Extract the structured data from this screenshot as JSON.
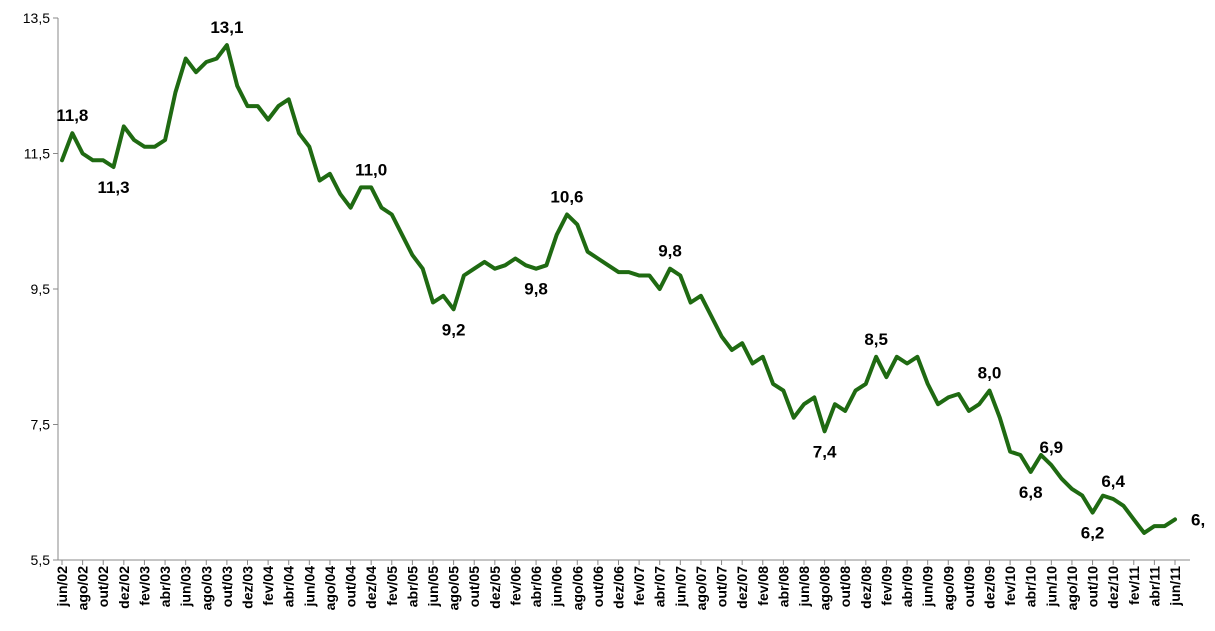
{
  "chart_data": {
    "type": "line",
    "categories": [
      "jun/02",
      null,
      "ago/02",
      null,
      "out/02",
      null,
      "dez/02",
      null,
      "fev/03",
      null,
      "abr/03",
      null,
      "jun/03",
      null,
      "ago/03",
      null,
      "out/03",
      null,
      "dez/03",
      null,
      "fev/04",
      null,
      "abr/04",
      null,
      "jun/04",
      null,
      "ago/04",
      null,
      "out/04",
      null,
      "dez/04",
      null,
      "fev/05",
      null,
      "abr/05",
      null,
      "jun/05",
      null,
      "ago/05",
      null,
      "out/05",
      null,
      "dez/05",
      null,
      "fev/06",
      null,
      "abr/06",
      null,
      "jun/06",
      null,
      "ago/06",
      null,
      "out/06",
      null,
      "dez/06",
      null,
      "fev/07",
      null,
      "abr/07",
      null,
      "jun/07",
      null,
      "ago/07",
      null,
      "out/07",
      null,
      "dez/07",
      null,
      "fev/08",
      null,
      "abr/08",
      null,
      "jun/08",
      null,
      "ago/08",
      null,
      "out/08",
      null,
      "dez/08",
      null,
      "fev/09",
      null,
      "abr/09",
      null,
      "jun/09",
      null,
      "ago/09",
      null,
      "out/09",
      null,
      "dez/09",
      null,
      "fev/10",
      null,
      "abr/10",
      null,
      "jun/10",
      null,
      "ago/10",
      null,
      "out/10",
      null,
      "dez/10",
      null,
      "fev/11",
      null,
      "abr/11",
      null,
      "jun/11"
    ],
    "values": [
      11.4,
      11.8,
      11.5,
      11.4,
      11.4,
      11.3,
      11.9,
      11.7,
      11.6,
      11.6,
      11.7,
      12.4,
      12.9,
      12.7,
      12.85,
      12.9,
      13.1,
      12.5,
      12.2,
      12.2,
      12.0,
      12.2,
      12.3,
      11.8,
      11.6,
      11.1,
      11.2,
      10.9,
      10.7,
      11.0,
      11.0,
      10.7,
      10.6,
      10.3,
      10.0,
      9.8,
      9.3,
      9.4,
      9.2,
      9.7,
      9.8,
      9.9,
      9.8,
      9.85,
      9.95,
      9.85,
      9.8,
      9.85,
      10.3,
      10.6,
      10.45,
      10.05,
      9.95,
      9.85,
      9.75,
      9.75,
      9.7,
      9.7,
      9.5,
      9.8,
      9.7,
      9.3,
      9.4,
      9.1,
      8.8,
      8.6,
      8.7,
      8.4,
      8.5,
      8.1,
      8.0,
      7.6,
      7.8,
      7.9,
      7.4,
      7.8,
      7.7,
      8.0,
      8.1,
      8.5,
      8.2,
      8.5,
      8.4,
      8.5,
      8.1,
      7.8,
      7.9,
      7.95,
      7.7,
      7.8,
      8.0,
      7.6,
      7.1,
      7.05,
      6.8,
      7.05,
      6.9,
      6.7,
      6.55,
      6.45,
      6.2,
      6.45,
      6.4,
      6.3,
      6.1,
      5.9,
      6.0,
      6.0,
      6.1
    ],
    "value_labels": [
      null,
      "11,8",
      null,
      null,
      null,
      "11,3",
      null,
      null,
      null,
      null,
      null,
      null,
      null,
      null,
      null,
      null,
      "13,1",
      null,
      null,
      null,
      null,
      null,
      null,
      null,
      null,
      null,
      null,
      null,
      null,
      null,
      "11,0",
      null,
      null,
      null,
      null,
      null,
      null,
      null,
      "9,2",
      null,
      null,
      null,
      null,
      null,
      null,
      null,
      "9,8",
      null,
      null,
      "10,6",
      null,
      null,
      null,
      null,
      null,
      null,
      null,
      null,
      null,
      "9,8",
      null,
      null,
      null,
      null,
      null,
      null,
      null,
      null,
      null,
      null,
      null,
      null,
      null,
      null,
      "7,4",
      null,
      null,
      null,
      null,
      "8,5",
      null,
      null,
      null,
      null,
      null,
      null,
      null,
      null,
      null,
      null,
      "8,0",
      null,
      null,
      null,
      "6,8",
      null,
      "6,9",
      null,
      null,
      null,
      "6,2",
      null,
      "6,4",
      null,
      null,
      null,
      null,
      null,
      "6,"
    ],
    "color": "#1f6a12",
    "ylim": [
      5.5,
      13.5
    ],
    "yticks": [
      {
        "value": 5.5,
        "label": "5,5"
      },
      {
        "value": 7.5,
        "label": "7,5"
      },
      {
        "value": 9.5,
        "label": "9,5"
      },
      {
        "value": 11.5,
        "label": "11,5"
      },
      {
        "value": 13.5,
        "label": "13,5"
      }
    ]
  }
}
